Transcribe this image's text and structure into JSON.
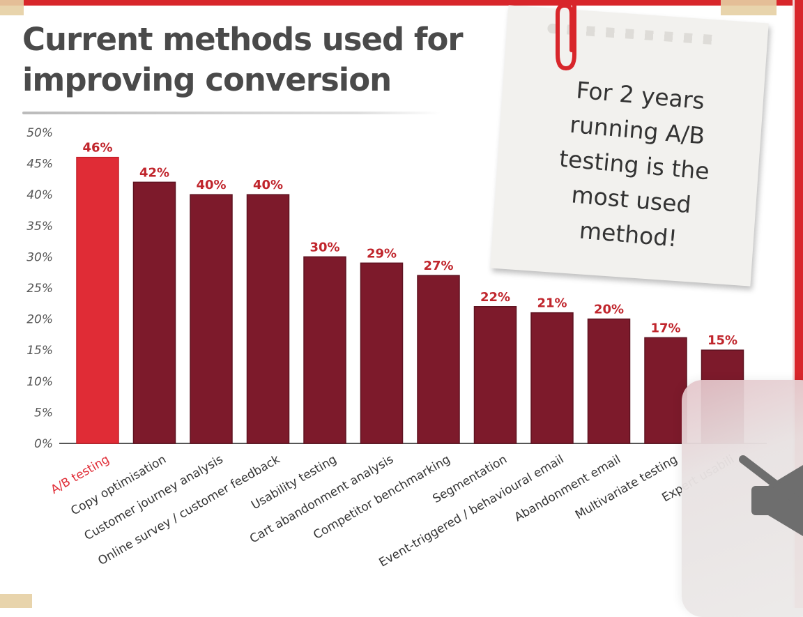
{
  "title": "Current methods used for improving conversion",
  "note": "For 2 years running A/B testing is the most used method!",
  "overlay": {
    "icon": "speaker-muted-icon"
  },
  "colors": {
    "highlight_bar": "#e02c36",
    "bar": "#7d1a2b",
    "highlight_label": "#e02c36",
    "value_label": "#c0252c",
    "axis_text": "#555555",
    "frame": "#d8262b"
  },
  "chart_data": {
    "type": "bar",
    "title": "Current methods used for improving conversion",
    "categories": [
      "A/B testing",
      "Copy optimisation",
      "Customer journey analysis",
      "Online survey / customer feedback",
      "Usability testing",
      "Cart abandonment analysis",
      "Competitor benchmarking",
      "Segmentation",
      "Event-triggered / behavioural email",
      "Abandonment email",
      "Multivariate testing",
      "Expert usabili"
    ],
    "values": [
      46,
      42,
      40,
      40,
      30,
      29,
      27,
      22,
      21,
      20,
      17,
      15
    ],
    "value_labels": [
      "46%",
      "42%",
      "40%",
      "40%",
      "30%",
      "29%",
      "27%",
      "22%",
      "21%",
      "20%",
      "17%",
      "15%"
    ],
    "yticks": [
      "0%",
      "5%",
      "10%",
      "15%",
      "20%",
      "25%",
      "30%",
      "35%",
      "40%",
      "45%",
      "50%"
    ],
    "ylim": [
      0,
      50
    ],
    "highlight_index": 0,
    "grid": false,
    "legend": "none"
  }
}
